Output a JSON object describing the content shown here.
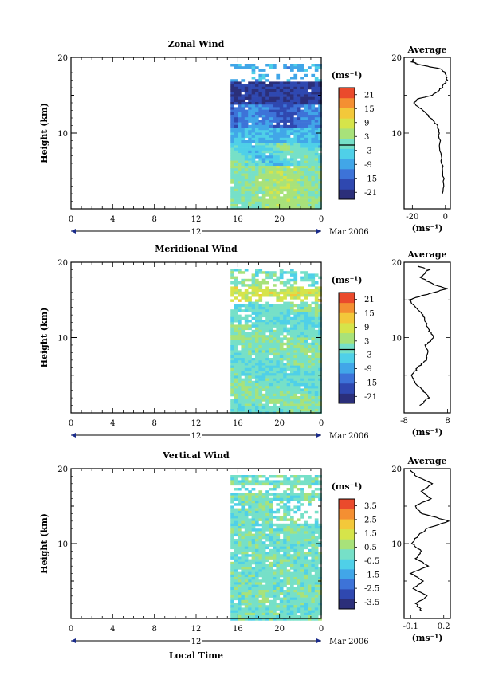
{
  "chart_data": [
    {
      "type": "heatmap",
      "title": "Zonal Wind",
      "ylabel": "Height (km)",
      "ylim": [
        0,
        20
      ],
      "yticks": [
        "10",
        "20"
      ],
      "xlim": [
        0,
        24
      ],
      "xticks": [
        "0",
        "4",
        "8",
        "12",
        "16",
        "20",
        "0"
      ],
      "date_label": "12",
      "date_suffix": "Mar 2006",
      "colorbar": {
        "unit": "(ms⁻¹)",
        "labels": [
          "21",
          "15",
          "9",
          "3",
          "-3",
          "-9",
          "-15",
          "-21"
        ],
        "range": [
          -24,
          24
        ],
        "zero_line": true
      },
      "data_start_hour": 15.3,
      "profile": {
        "title": "Average",
        "xlabel": "(ms⁻¹)",
        "xticks": [
          "-20",
          "0"
        ],
        "xlim": [
          -25,
          3
        ],
        "yticks": [
          "10",
          "20"
        ],
        "points": [
          [
            -2,
            2
          ],
          [
            -1,
            4
          ],
          [
            -2,
            6
          ],
          [
            -3,
            8
          ],
          [
            -4,
            10
          ],
          [
            -5,
            11
          ],
          [
            -9,
            12
          ],
          [
            -14,
            13
          ],
          [
            -19,
            14
          ],
          [
            -17,
            14.5
          ],
          [
            -8,
            15
          ],
          [
            -2,
            16
          ],
          [
            1,
            17
          ],
          [
            0,
            18
          ],
          [
            -3,
            18.5
          ],
          [
            -15,
            19
          ],
          [
            -20,
            19.4
          ],
          [
            -19,
            19.8
          ]
        ]
      }
    },
    {
      "type": "heatmap",
      "title": "Meridional Wind",
      "ylabel": "Height (km)",
      "ylim": [
        0,
        20
      ],
      "yticks": [
        "10",
        "20"
      ],
      "xlim": [
        0,
        24
      ],
      "xticks": [
        "0",
        "4",
        "8",
        "12",
        "16",
        "20",
        "0"
      ],
      "date_label": "12",
      "date_suffix": "Mar 2006",
      "colorbar": {
        "unit": "(ms⁻¹)",
        "labels": [
          "21",
          "15",
          "9",
          "3",
          "-3",
          "-9",
          "-15",
          "-21"
        ],
        "range": [
          -24,
          24
        ],
        "zero_line": true
      },
      "data_start_hour": 15.3,
      "profile": {
        "title": "Average",
        "xlabel": "(ms⁻¹)",
        "xticks": [
          "-8",
          "8"
        ],
        "xlim": [
          -8,
          9
        ],
        "yticks": [
          "10",
          "20"
        ],
        "points": [
          [
            -2,
            1
          ],
          [
            1,
            2
          ],
          [
            -1,
            3
          ],
          [
            -4,
            4
          ],
          [
            -5,
            5
          ],
          [
            -3,
            6
          ],
          [
            0,
            7
          ],
          [
            1,
            8
          ],
          [
            0,
            9
          ],
          [
            3,
            10
          ],
          [
            1,
            11
          ],
          [
            0,
            12
          ],
          [
            -1,
            13
          ],
          [
            -4,
            14
          ],
          [
            -6,
            15
          ],
          [
            -2,
            15.5
          ],
          [
            3,
            16
          ],
          [
            8,
            16.5
          ],
          [
            3,
            17
          ],
          [
            -2,
            18
          ],
          [
            1,
            19
          ],
          [
            -3,
            19.5
          ]
        ]
      }
    },
    {
      "type": "heatmap",
      "title": "Vertical Wind",
      "ylabel": "Height (km)",
      "ylim": [
        0,
        20
      ],
      "yticks": [
        "10",
        "20"
      ],
      "xlim": [
        0,
        24
      ],
      "xticks": [
        "0",
        "4",
        "8",
        "12",
        "16",
        "20",
        "0"
      ],
      "date_label": "12",
      "date_suffix": "Mar 2006",
      "xlabel": "Local Time",
      "colorbar": {
        "unit": "(ms⁻¹)",
        "labels": [
          "3.5",
          "2.5",
          "1.5",
          "0.5",
          "-0.5",
          "-1.5",
          "-2.5",
          "-3.5"
        ],
        "range": [
          -4,
          4
        ],
        "zero_line": false
      },
      "data_start_hour": 15.3,
      "profile": {
        "title": "Average",
        "xlabel": "(ms⁻¹)",
        "xticks": [
          "-0.1",
          "0.2"
        ],
        "xlim": [
          -0.16,
          0.26
        ],
        "yticks": [
          "10",
          "20"
        ],
        "points": [
          [
            0.0,
            1
          ],
          [
            -0.05,
            2
          ],
          [
            0.05,
            3
          ],
          [
            -0.08,
            4
          ],
          [
            0.02,
            5
          ],
          [
            -0.1,
            6
          ],
          [
            0.06,
            7
          ],
          [
            -0.05,
            8
          ],
          [
            0.0,
            9
          ],
          [
            -0.09,
            10
          ],
          [
            -0.04,
            11
          ],
          [
            0.05,
            12
          ],
          [
            0.25,
            13
          ],
          [
            0.0,
            14
          ],
          [
            -0.06,
            15
          ],
          [
            0.08,
            16
          ],
          [
            0.0,
            17
          ],
          [
            0.1,
            18
          ],
          [
            -0.05,
            19
          ],
          [
            -0.1,
            19.8
          ]
        ]
      }
    }
  ]
}
